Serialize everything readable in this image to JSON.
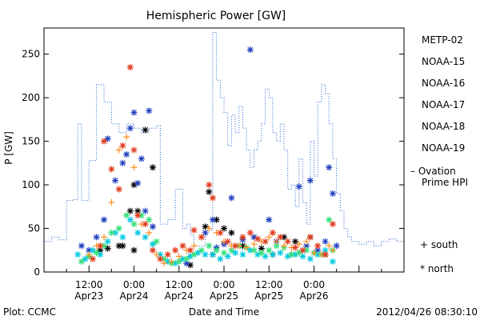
{
  "chart_data": {
    "type": "scatter",
    "title": "Hemispheric Power [GW]",
    "xlabel": "Date and Time",
    "ylabel": "P [GW]",
    "ylim": [
      0,
      280
    ],
    "yticks": [
      0,
      50,
      100,
      150,
      200,
      250
    ],
    "xlim": [
      0,
      96
    ],
    "x_units": "hours since 2012-04-23 00:00 UT",
    "xticks": [
      {
        "x": 12,
        "label": "12:00",
        "sub": "Apr23"
      },
      {
        "x": 24,
        "label": "0:00",
        "sub": "Apr24"
      },
      {
        "x": 36,
        "label": "12:00",
        "sub": "Apr24"
      },
      {
        "x": 48,
        "label": "0:00",
        "sub": "Apr25"
      },
      {
        "x": 60,
        "label": "12:00",
        "sub": "Apr25"
      },
      {
        "x": 72,
        "label": "0:00",
        "sub": "Apr26"
      }
    ],
    "series": [
      {
        "name": "METP-02",
        "color": "#000000",
        "marker": "*",
        "points": [
          [
            15,
            25
          ],
          [
            17,
            27
          ],
          [
            20,
            30
          ],
          [
            23,
            70
          ],
          [
            24,
            100
          ],
          [
            25,
            70
          ],
          [
            27,
            163
          ],
          [
            29,
            120
          ],
          [
            24,
            25
          ],
          [
            21,
            30
          ],
          [
            39,
            8
          ],
          [
            43,
            52
          ],
          [
            44,
            92
          ],
          [
            46,
            60
          ],
          [
            48,
            50
          ],
          [
            45,
            20
          ],
          [
            50,
            45
          ],
          [
            53,
            30
          ],
          [
            58,
            27
          ],
          [
            61,
            20
          ],
          [
            64,
            40
          ],
          [
            67,
            35
          ],
          [
            71,
            40
          ],
          [
            75,
            20
          ]
        ]
      },
      {
        "name": "NOAA-15",
        "color": "#1f3fbf",
        "marker": "*",
        "points": [
          [
            10,
            30
          ],
          [
            12,
            25
          ],
          [
            14,
            40
          ],
          [
            16,
            60
          ],
          [
            17,
            153
          ],
          [
            19,
            105
          ],
          [
            21,
            125
          ],
          [
            22,
            135
          ],
          [
            23,
            165
          ],
          [
            24,
            183
          ],
          [
            25,
            102
          ],
          [
            26,
            130
          ],
          [
            27,
            70
          ],
          [
            28,
            185
          ],
          [
            29,
            52
          ],
          [
            38,
            10
          ],
          [
            43,
            45
          ],
          [
            45,
            60
          ],
          [
            46,
            28
          ],
          [
            48,
            32
          ],
          [
            50,
            85
          ],
          [
            53,
            37
          ],
          [
            55,
            255
          ],
          [
            56,
            40
          ],
          [
            60,
            60
          ],
          [
            62,
            35
          ],
          [
            66,
            20
          ],
          [
            68,
            98
          ],
          [
            70,
            30
          ],
          [
            71,
            105
          ],
          [
            73,
            25
          ],
          [
            75,
            35
          ],
          [
            76,
            120
          ],
          [
            77,
            90
          ],
          [
            78,
            30
          ]
        ]
      },
      {
        "name": "NOAA-16",
        "color": "#00c8e0",
        "marker": "*",
        "points": [
          [
            9,
            20
          ],
          [
            11,
            15
          ],
          [
            13,
            25
          ],
          [
            15,
            20
          ],
          [
            17,
            35
          ],
          [
            19,
            45
          ],
          [
            21,
            40
          ],
          [
            23,
            60
          ],
          [
            25,
            45
          ],
          [
            27,
            40
          ],
          [
            29,
            32
          ],
          [
            31,
            20
          ],
          [
            33,
            12
          ],
          [
            35,
            10
          ],
          [
            37,
            15
          ],
          [
            39,
            18
          ],
          [
            41,
            22
          ],
          [
            43,
            20
          ],
          [
            45,
            20
          ],
          [
            47,
            15
          ],
          [
            49,
            18
          ],
          [
            51,
            22
          ],
          [
            53,
            20
          ],
          [
            55,
            25
          ],
          [
            57,
            20
          ],
          [
            59,
            18
          ],
          [
            61,
            20
          ],
          [
            63,
            22
          ],
          [
            65,
            18
          ],
          [
            67,
            20
          ],
          [
            69,
            18
          ],
          [
            71,
            15
          ],
          [
            73,
            20
          ],
          [
            75,
            25
          ],
          [
            77,
            12
          ]
        ]
      },
      {
        "name": "NOAA-17",
        "color": "#33e07a",
        "marker": "*",
        "points": [
          [
            10,
            12
          ],
          [
            12,
            18
          ],
          [
            14,
            22
          ],
          [
            16,
            30
          ],
          [
            18,
            45
          ],
          [
            20,
            50
          ],
          [
            22,
            65
          ],
          [
            24,
            55
          ],
          [
            26,
            65
          ],
          [
            28,
            60
          ],
          [
            30,
            35
          ],
          [
            32,
            15
          ],
          [
            34,
            10
          ],
          [
            36,
            12
          ],
          [
            38,
            15
          ],
          [
            40,
            20
          ],
          [
            42,
            25
          ],
          [
            44,
            30
          ],
          [
            46,
            25
          ],
          [
            48,
            22
          ],
          [
            50,
            25
          ],
          [
            52,
            30
          ],
          [
            54,
            28
          ],
          [
            56,
            25
          ],
          [
            58,
            22
          ],
          [
            60,
            25
          ],
          [
            62,
            30
          ],
          [
            64,
            28
          ],
          [
            66,
            20
          ],
          [
            68,
            22
          ],
          [
            70,
            25
          ],
          [
            72,
            22
          ],
          [
            74,
            20
          ],
          [
            76,
            60
          ],
          [
            77,
            25
          ]
        ]
      },
      {
        "name": "NOAA-18",
        "color": "#ff8c1a",
        "marker": "+",
        "points": [
          [
            12,
            20
          ],
          [
            14,
            30
          ],
          [
            16,
            40
          ],
          [
            18,
            80
          ],
          [
            20,
            140
          ],
          [
            22,
            155
          ],
          [
            24,
            120
          ],
          [
            26,
            55
          ],
          [
            28,
            45
          ],
          [
            30,
            20
          ],
          [
            32,
            10
          ],
          [
            34,
            12
          ],
          [
            36,
            18
          ],
          [
            38,
            25
          ],
          [
            40,
            30
          ],
          [
            42,
            40
          ],
          [
            44,
            50
          ],
          [
            46,
            45
          ],
          [
            48,
            35
          ],
          [
            50,
            30
          ],
          [
            52,
            30
          ],
          [
            54,
            28
          ],
          [
            56,
            32
          ],
          [
            58,
            35
          ],
          [
            60,
            40
          ],
          [
            62,
            35
          ],
          [
            64,
            30
          ],
          [
            66,
            28
          ],
          [
            68,
            32
          ],
          [
            70,
            35
          ],
          [
            72,
            22
          ],
          [
            74,
            20
          ],
          [
            76,
            30
          ],
          [
            77,
            25
          ]
        ]
      },
      {
        "name": "NOAA-19",
        "color": "#e03a1a",
        "marker": "*",
        "points": [
          [
            13,
            15
          ],
          [
            15,
            30
          ],
          [
            16,
            150
          ],
          [
            18,
            118
          ],
          [
            20,
            95
          ],
          [
            21,
            145
          ],
          [
            23,
            235
          ],
          [
            24,
            140
          ],
          [
            25,
            65
          ],
          [
            27,
            55
          ],
          [
            29,
            25
          ],
          [
            31,
            15
          ],
          [
            33,
            20
          ],
          [
            35,
            25
          ],
          [
            37,
            30
          ],
          [
            39,
            25
          ],
          [
            40,
            48
          ],
          [
            42,
            40
          ],
          [
            44,
            100
          ],
          [
            45,
            85
          ],
          [
            47,
            45
          ],
          [
            49,
            35
          ],
          [
            51,
            30
          ],
          [
            53,
            40
          ],
          [
            55,
            45
          ],
          [
            57,
            38
          ],
          [
            59,
            35
          ],
          [
            61,
            45
          ],
          [
            63,
            40
          ],
          [
            65,
            35
          ],
          [
            67,
            28
          ],
          [
            69,
            25
          ],
          [
            71,
            40
          ],
          [
            73,
            30
          ],
          [
            75,
            20
          ],
          [
            77,
            55
          ]
        ]
      }
    ],
    "ovation": {
      "name": "- Ovation Prime HPI",
      "color": "#1a5fd6",
      "points": [
        [
          0,
          35
        ],
        [
          2,
          40
        ],
        [
          4,
          37
        ],
        [
          6,
          82
        ],
        [
          8,
          83
        ],
        [
          9,
          170
        ],
        [
          10,
          82
        ],
        [
          12,
          128
        ],
        [
          14,
          215
        ],
        [
          16,
          195
        ],
        [
          18,
          170
        ],
        [
          20,
          160
        ],
        [
          22,
          170
        ],
        [
          24,
          165
        ],
        [
          26,
          160
        ],
        [
          28,
          165
        ],
        [
          30,
          168
        ],
        [
          31,
          55
        ],
        [
          33,
          60
        ],
        [
          35,
          95
        ],
        [
          37,
          50
        ],
        [
          38,
          55
        ],
        [
          39,
          42
        ],
        [
          40,
          30
        ],
        [
          42,
          30
        ],
        [
          43,
          50
        ],
        [
          44,
          48
        ],
        [
          45,
          275
        ],
        [
          46,
          220
        ],
        [
          47,
          200
        ],
        [
          48,
          183
        ],
        [
          49,
          145
        ],
        [
          50,
          180
        ],
        [
          51,
          160
        ],
        [
          52,
          190
        ],
        [
          53,
          165
        ],
        [
          54,
          140
        ],
        [
          55,
          120
        ],
        [
          56,
          140
        ],
        [
          57,
          150
        ],
        [
          58,
          170
        ],
        [
          59,
          210
        ],
        [
          60,
          200
        ],
        [
          61,
          160
        ],
        [
          62,
          150
        ],
        [
          63,
          170
        ],
        [
          64,
          140
        ],
        [
          65,
          95
        ],
        [
          66,
          100
        ],
        [
          67,
          75
        ],
        [
          68,
          130
        ],
        [
          69,
          80
        ],
        [
          70,
          55
        ],
        [
          71,
          150
        ],
        [
          72,
          110
        ],
        [
          73,
          195
        ],
        [
          74,
          215
        ],
        [
          75,
          205
        ],
        [
          76,
          170
        ],
        [
          77,
          130
        ],
        [
          78,
          90
        ],
        [
          79,
          70
        ],
        [
          80,
          50
        ],
        [
          81,
          40
        ],
        [
          82,
          35
        ],
        [
          84,
          32
        ],
        [
          86,
          35
        ],
        [
          88,
          30
        ],
        [
          90,
          35
        ],
        [
          92,
          38
        ],
        [
          94,
          35
        ],
        [
          96,
          35
        ]
      ]
    },
    "legend_extra": [
      {
        "symbol": "+",
        "label": "south"
      },
      {
        "symbol": "*",
        "label": "north"
      }
    ],
    "grid": false,
    "legend_position": "right"
  },
  "footer": {
    "left": "Plot: CCMC",
    "center": "Date and Time",
    "right": "2012/04/26 08:30:10"
  }
}
